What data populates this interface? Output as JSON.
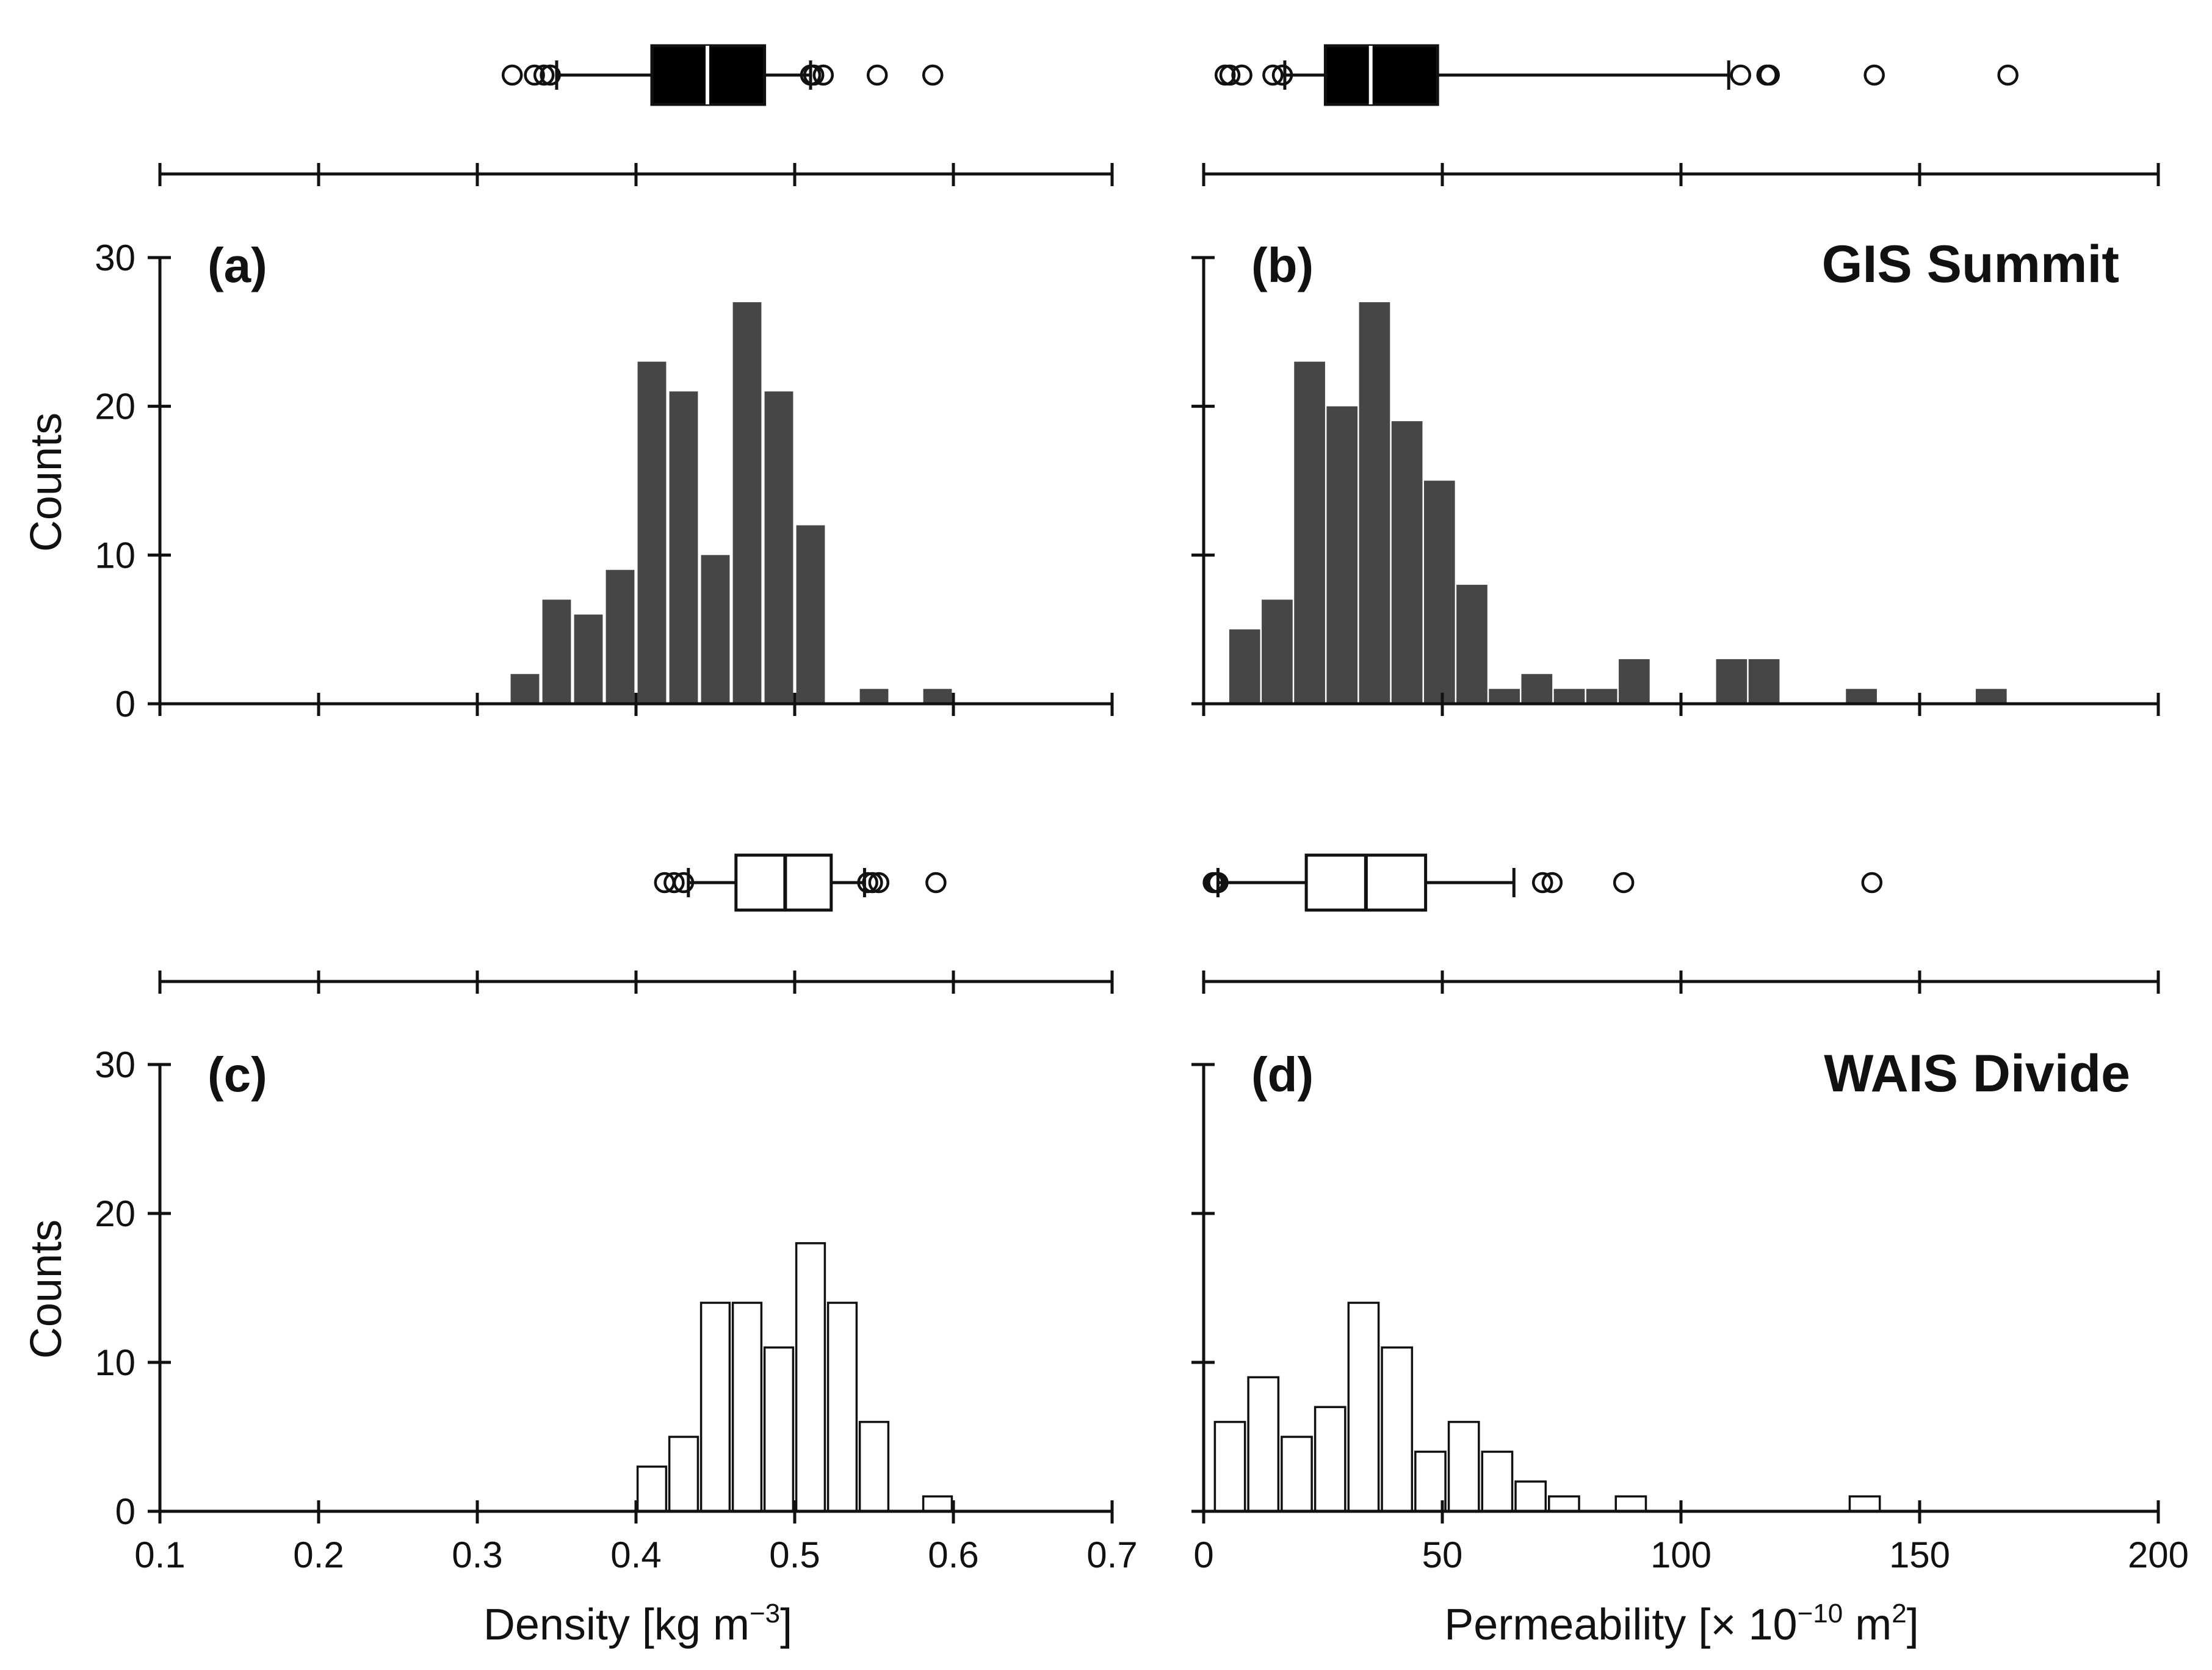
{
  "colors": {
    "filled": "#464646",
    "open": "#ffffff",
    "stroke": "#111111"
  },
  "chart_data": [
    {
      "panel": "a",
      "type": "bar",
      "site": "",
      "style": "filled",
      "xlim": [
        0.1,
        0.7
      ],
      "ylim": [
        0,
        30
      ],
      "bin_width": 0.02,
      "bin_starts": [
        0.32,
        0.34,
        0.36,
        0.38,
        0.4,
        0.42,
        0.44,
        0.46,
        0.48,
        0.5,
        0.52,
        0.54,
        0.56,
        0.58
      ],
      "values": [
        2,
        7,
        6,
        9,
        23,
        21,
        10,
        27,
        21,
        12,
        0,
        1,
        0,
        1
      ],
      "boxplot": {
        "q1": 0.41,
        "median": 0.445,
        "q3": 0.481,
        "whisker_low": 0.35,
        "whisker_high": 0.51,
        "outliers": [
          0.322,
          0.336,
          0.342,
          0.346,
          0.51,
          0.512,
          0.518,
          0.552,
          0.587
        ]
      }
    },
    {
      "panel": "b",
      "type": "bar",
      "site": "GIS Summit",
      "style": "filled",
      "xlim": [
        0,
        200
      ],
      "ylim": [
        0,
        30
      ],
      "bin_width": 7.2,
      "bin_starts": [
        5,
        11.8,
        18.6,
        25.4,
        32.2,
        39,
        45.8,
        52.6,
        59.4,
        66.2,
        73,
        79.8,
        86.6,
        93.4,
        100.2,
        107,
        113.8,
        120.6,
        127.4,
        134.2,
        141,
        147.8,
        154.6,
        161.4,
        168.2
      ],
      "values": [
        5,
        7,
        23,
        20,
        27,
        19,
        15,
        8,
        1,
        2,
        1,
        1,
        3,
        0,
        0,
        3,
        3,
        0,
        0,
        1,
        0,
        0,
        0,
        1,
        0
      ],
      "boxplot": {
        "q1": 25.5,
        "median": 35.0,
        "q3": 49.0,
        "whisker_low": 17.0,
        "whisker_high": 110.0,
        "outliers": [
          4.5,
          5.5,
          8.0,
          14.5,
          16.5,
          112.5,
          118.0,
          118.5,
          140.5,
          168.5
        ]
      }
    },
    {
      "panel": "c",
      "type": "bar",
      "site": "",
      "style": "open",
      "xlim": [
        0.1,
        0.7
      ],
      "ylim": [
        0,
        30
      ],
      "bin_width": 0.02,
      "bin_starts": [
        0.4,
        0.42,
        0.44,
        0.46,
        0.48,
        0.5,
        0.52,
        0.54,
        0.56,
        0.58
      ],
      "values": [
        3,
        5,
        14,
        14,
        11,
        18,
        14,
        6,
        0,
        1
      ],
      "boxplot": {
        "q1": 0.463,
        "median": 0.494,
        "q3": 0.523,
        "whisker_low": 0.433,
        "whisker_high": 0.544,
        "outliers": [
          0.418,
          0.424,
          0.43,
          0.546,
          0.549,
          0.553,
          0.589
        ]
      }
    },
    {
      "panel": "d",
      "type": "bar",
      "site": "WAIS Divide",
      "style": "open",
      "xlim": [
        0,
        200
      ],
      "ylim": [
        0,
        30
      ],
      "bin_width": 7.0,
      "bin_starts": [
        2,
        9,
        16,
        23,
        30,
        37,
        44,
        51,
        58,
        65,
        72,
        79,
        86,
        93,
        100,
        107,
        114,
        121,
        128,
        135
      ],
      "values": [
        6,
        9,
        5,
        7,
        14,
        11,
        4,
        6,
        4,
        2,
        1,
        0,
        1,
        0,
        0,
        0,
        0,
        0,
        0,
        1
      ],
      "boxplot": {
        "q1": 21.5,
        "median": 34.0,
        "q3": 46.5,
        "whisker_low": 3.0,
        "whisker_high": 65.0,
        "outliers": [
          2.0,
          2.5,
          3.0,
          71.0,
          73.0,
          88.0,
          140.0
        ]
      }
    }
  ],
  "axes": {
    "ylabel": "Counts",
    "density_xlabel": "Density [kg m",
    "density_xlabel_sup": "−3",
    "density_xlabel_end": "]",
    "perm_xlabel": "Permeability [× 10",
    "perm_xlabel_sup": "−10",
    "perm_xlabel_mid": " m",
    "perm_xlabel_sup2": "2",
    "perm_xlabel_end": "]",
    "density_ticks": [
      "0.1",
      "0.2",
      "0.3",
      "0.4",
      "0.5",
      "0.6",
      "0.7"
    ],
    "perm_ticks": [
      "0",
      "50",
      "100",
      "150",
      "200"
    ],
    "y_ticks": [
      "0",
      "10",
      "20",
      "30"
    ]
  },
  "labels": {
    "a": "(a)",
    "b": "(b)",
    "c": "(c)",
    "d": "(d)",
    "site_top": "GIS Summit",
    "site_bottom": "WAIS Divide"
  }
}
